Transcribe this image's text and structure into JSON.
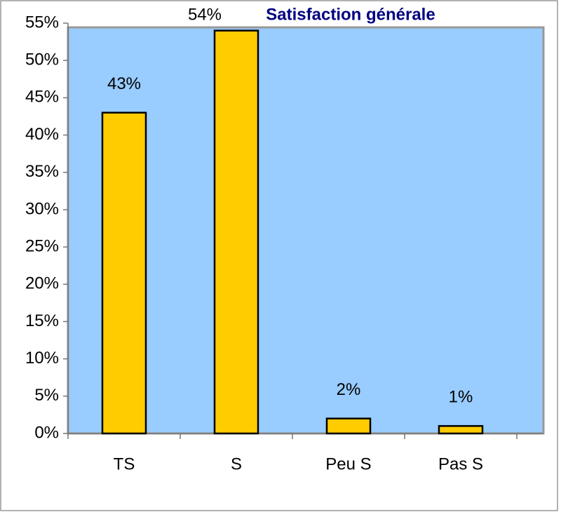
{
  "chart_data": {
    "type": "bar",
    "title": "Satisfaction générale",
    "categories": [
      "TS",
      "S",
      "Peu S",
      "Pas S"
    ],
    "values": [
      43,
      54,
      2,
      1
    ],
    "value_labels": [
      "43%",
      "54%",
      "2%",
      "1%"
    ],
    "color": "#ffcc00",
    "ylim": [
      0,
      55
    ],
    "yticks": [
      {
        "value": 0,
        "label": "0%"
      },
      {
        "value": 5,
        "label": "5%"
      },
      {
        "value": 10,
        "label": "10%"
      },
      {
        "value": 15,
        "label": "15%"
      },
      {
        "value": 20,
        "label": "20%"
      },
      {
        "value": 25,
        "label": "25%"
      },
      {
        "value": 30,
        "label": "30%"
      },
      {
        "value": 35,
        "label": "35%"
      },
      {
        "value": 40,
        "label": "40%"
      },
      {
        "value": 45,
        "label": "45%"
      },
      {
        "value": 50,
        "label": "50%"
      },
      {
        "value": 55,
        "label": "55%"
      }
    ],
    "grid": false
  }
}
